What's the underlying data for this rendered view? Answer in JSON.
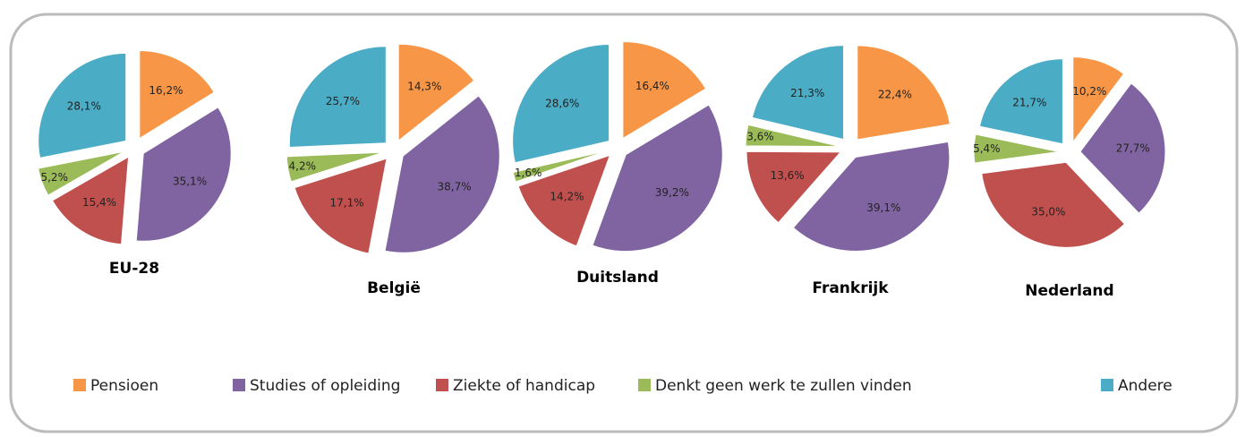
{
  "chart_data": [
    {
      "type": "pie",
      "title": "EU-28",
      "categories": [
        "Pensioen",
        "Studies of opleiding",
        "Ziekte of handicap",
        "Denkt geen werk te zullen vinden",
        "Andere"
      ],
      "colors": [
        "#f79646",
        "#8064a2",
        "#c0504d",
        "#9bbb59",
        "#4bacc6"
      ],
      "values": [
        16.2,
        35.1,
        15.4,
        5.2,
        28.1
      ],
      "value_labels": [
        "16,2%",
        "35,1%",
        "15,4%",
        "5,2%",
        "28,1%"
      ]
    },
    {
      "type": "pie",
      "title": "België",
      "categories": [
        "Pensioen",
        "Studies of opleiding",
        "Ziekte of handicap",
        "Denkt geen werk te zullen vinden",
        "Andere"
      ],
      "colors": [
        "#f79646",
        "#8064a2",
        "#c0504d",
        "#9bbb59",
        "#4bacc6"
      ],
      "values": [
        14.3,
        38.7,
        17.1,
        4.2,
        25.7
      ],
      "value_labels": [
        "14,3%",
        "38,7%",
        "17,1%",
        "4,2%",
        "25,7%"
      ]
    },
    {
      "type": "pie",
      "title": "Duitsland",
      "categories": [
        "Pensioen",
        "Studies of opleiding",
        "Ziekte of handicap",
        "Denkt geen werk te zullen vinden",
        "Andere"
      ],
      "colors": [
        "#f79646",
        "#8064a2",
        "#c0504d",
        "#9bbb59",
        "#4bacc6"
      ],
      "values": [
        16.4,
        39.2,
        14.2,
        1.6,
        28.6
      ],
      "value_labels": [
        "16,4%",
        "39,2%",
        "14,2%",
        "1,6%",
        "28,6%"
      ]
    },
    {
      "type": "pie",
      "title": "Frankrijk",
      "categories": [
        "Pensioen",
        "Studies of opleiding",
        "Ziekte of handicap",
        "Denkt geen werk te zullen vinden",
        "Andere"
      ],
      "colors": [
        "#f79646",
        "#8064a2",
        "#c0504d",
        "#9bbb59",
        "#4bacc6"
      ],
      "values": [
        22.4,
        39.1,
        13.6,
        3.6,
        21.3
      ],
      "value_labels": [
        "22,4%",
        "39,1%",
        "13,6%",
        "3,6%",
        "21,3%"
      ]
    },
    {
      "type": "pie",
      "title": "Nederland",
      "categories": [
        "Pensioen",
        "Studies of opleiding",
        "Ziekte of handicap",
        "Denkt geen werk te zullen vinden",
        "Andere"
      ],
      "colors": [
        "#f79646",
        "#8064a2",
        "#c0504d",
        "#9bbb59",
        "#4bacc6"
      ],
      "values": [
        10.2,
        27.7,
        35.0,
        5.4,
        21.7
      ],
      "value_labels": [
        "10,2%",
        "27,7%",
        "35,0%",
        "5,4%",
        "21,7%"
      ]
    }
  ]
}
